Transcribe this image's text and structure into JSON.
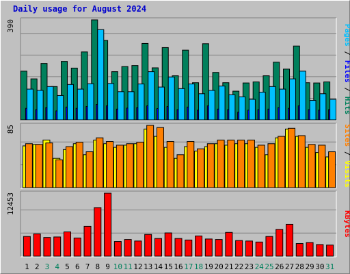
{
  "title": "Daily usage for August 2024",
  "colors": {
    "hits": "#00805c",
    "files": "#0000ff",
    "pages": "#00c0ff",
    "visits": "#ffff00",
    "sites": "#ff8000",
    "kbytes": "#ff0000",
    "title": "#0000cc",
    "weekend": "#00805c",
    "day": "#000000"
  },
  "chart_data": [
    {
      "type": "bar",
      "panel": "hits-files-pages",
      "categories": [
        "1",
        "2",
        "3",
        "4",
        "5",
        "6",
        "7",
        "8",
        "9",
        "10",
        "11",
        "12",
        "13",
        "14",
        "15",
        "16",
        "17",
        "18",
        "19",
        "20",
        "21",
        "22",
        "23",
        "24",
        "25",
        "26",
        "27",
        "28",
        "29",
        "30",
        "31"
      ],
      "ymax_label": "390",
      "ylim": [
        0,
        390
      ],
      "grid": true,
      "series": [
        {
          "name": "Hits",
          "key": "hits",
          "values": [
            190,
            160,
            220,
            130,
            228,
            202,
            265,
            390,
            310,
            188,
            208,
            212,
            298,
            203,
            282,
            172,
            272,
            145,
            297,
            185,
            145,
            112,
            144,
            148,
            172,
            225,
            198,
            288,
            145,
            144,
            148
          ]
        },
        {
          "name": "Files",
          "key": "files",
          "values": [
            45,
            40,
            48,
            35,
            50,
            45,
            52,
            60,
            55,
            42,
            46,
            48,
            55,
            44,
            52,
            40,
            50,
            38,
            55,
            42,
            40,
            30,
            38,
            40,
            42,
            48,
            45,
            55,
            40,
            38,
            40
          ]
        },
        {
          "name": "Pages",
          "key": "pages",
          "values": [
            120,
            115,
            130,
            95,
            138,
            120,
            141,
            352,
            142,
            110,
            110,
            140,
            188,
            128,
            167,
            122,
            140,
            102,
            115,
            132,
            98,
            90,
            80,
            108,
            130,
            120,
            160,
            190,
            76,
            102,
            80
          ]
        }
      ],
      "legend": [
        "Pages",
        "Files",
        "Hits"
      ]
    },
    {
      "type": "bar",
      "panel": "visits-sites",
      "categories": [
        "1",
        "2",
        "3",
        "4",
        "5",
        "6",
        "7",
        "8",
        "9",
        "10",
        "11",
        "12",
        "13",
        "14",
        "15",
        "16",
        "17",
        "18",
        "19",
        "20",
        "21",
        "22",
        "23",
        "24",
        "25",
        "26",
        "27",
        "28",
        "29",
        "30",
        "31"
      ],
      "ymax_label": "85",
      "ylim": [
        0,
        85
      ],
      "grid": true,
      "series": [
        {
          "name": "Visits",
          "key": "visits",
          "values": [
            57,
            59,
            65,
            40,
            52,
            60,
            45,
            65,
            60,
            55,
            58,
            60,
            80,
            70,
            55,
            40,
            56,
            50,
            56,
            60,
            58,
            60,
            60,
            55,
            45,
            68,
            80,
            70,
            55,
            48,
            42
          ]
        },
        {
          "name": "Sites",
          "key": "sites",
          "values": [
            60,
            59,
            61,
            38,
            56,
            62,
            49,
            68,
            63,
            58,
            60,
            62,
            85,
            82,
            63,
            45,
            63,
            53,
            60,
            65,
            65,
            65,
            65,
            58,
            60,
            70,
            81,
            71,
            59,
            58,
            49
          ]
        }
      ],
      "legend": [
        "Sites",
        "Visits"
      ]
    },
    {
      "type": "bar",
      "panel": "kbytes",
      "categories": [
        "1",
        "2",
        "3",
        "4",
        "5",
        "6",
        "7",
        "8",
        "9",
        "10",
        "11",
        "12",
        "13",
        "14",
        "15",
        "16",
        "17",
        "18",
        "19",
        "20",
        "21",
        "22",
        "23",
        "24",
        "25",
        "26",
        "27",
        "28",
        "29",
        "30",
        "31"
      ],
      "ymax_label": "12453",
      "ylim": [
        0,
        12453
      ],
      "grid": true,
      "series": [
        {
          "name": "KBytes",
          "key": "kbytes",
          "values": [
            3900,
            4400,
            3700,
            3800,
            4800,
            3600,
            5900,
            9600,
            12453,
            2900,
            3300,
            3000,
            4300,
            3500,
            4600,
            3500,
            3200,
            4000,
            3400,
            3300,
            4700,
            3100,
            3000,
            2800,
            3900,
            5300,
            6300,
            2500,
            2700,
            2300,
            2200
          ]
        }
      ],
      "legend": [
        "KBytes"
      ]
    }
  ],
  "x_weekend_days": [
    "3",
    "4",
    "10",
    "11",
    "17",
    "18",
    "24",
    "25",
    "31"
  ]
}
